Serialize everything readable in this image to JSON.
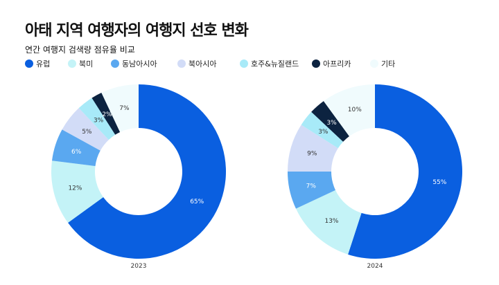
{
  "title": "아태 지역 여행자의 여행지 선호 변화",
  "subtitle": "연간 여행지 검색량 점유율 비교",
  "chart_data": [
    {
      "type": "pie",
      "variant": "donut",
      "label": "2023",
      "categories": [
        "유럽",
        "북미",
        "동남아시아",
        "북아시아",
        "호주&뉴질랜드",
        "아프리카",
        "기타"
      ],
      "values": [
        65,
        12,
        6,
        5,
        3,
        2,
        7
      ],
      "unit": "%"
    },
    {
      "type": "pie",
      "variant": "donut",
      "label": "2024",
      "categories": [
        "유럽",
        "북미",
        "동남아시아",
        "북아시아",
        "호주&뉴질랜드",
        "아프리카",
        "기타"
      ],
      "values": [
        55,
        13,
        7,
        9,
        3,
        3,
        10
      ],
      "unit": "%"
    }
  ],
  "legend": {
    "position": "top-left",
    "items": [
      "유럽",
      "북미",
      "동남아시아",
      "북아시아",
      "호주&뉴질랜드",
      "아프리카",
      "기타"
    ]
  },
  "colors": [
    "#0A5FE0",
    "#C4F3F7",
    "#5AA8F0",
    "#D2DCF7",
    "#A8EAF8",
    "#0C2340",
    "#F0FBFD"
  ],
  "label_colors": [
    "#FFFFFF",
    "#333333",
    "#FFFFFF",
    "#333333",
    "#333333",
    "#FFFFFF",
    "#333333"
  ]
}
